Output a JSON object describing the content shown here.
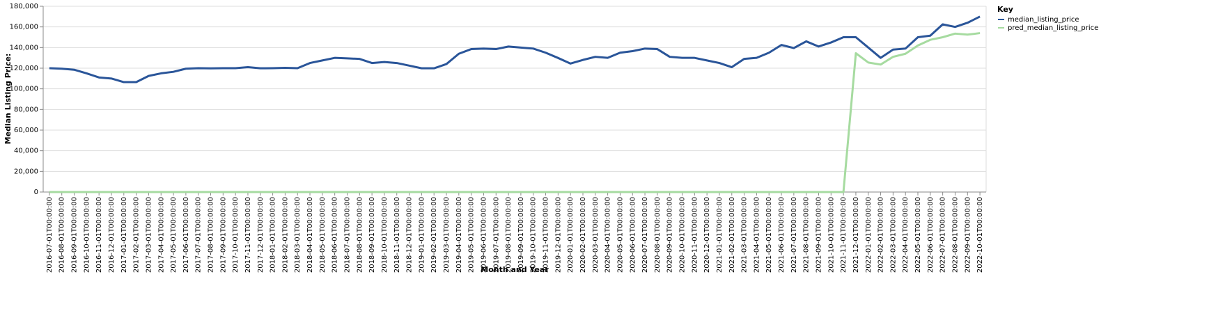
{
  "chart_data": {
    "type": "line",
    "y_label": "Median Listing Price:",
    "x_label": "Month and Year",
    "legend_title": "Key",
    "legend": "top-right",
    "grid": true,
    "categories": [
      "2016-07-01T00:00:00",
      "2016-08-01T00:00:00",
      "2016-09-01T00:00:00",
      "2016-10-01T00:00:00",
      "2016-11-01T00:00:00",
      "2016-12-01T00:00:00",
      "2017-01-01T00:00:00",
      "2017-02-01T00:00:00",
      "2017-03-01T00:00:00",
      "2017-04-01T00:00:00",
      "2017-05-01T00:00:00",
      "2017-06-01T00:00:00",
      "2017-07-01T00:00:00",
      "2017-08-01T00:00:00",
      "2017-09-01T00:00:00",
      "2017-10-01T00:00:00",
      "2017-11-01T00:00:00",
      "2017-12-01T00:00:00",
      "2018-01-01T00:00:00",
      "2018-02-01T00:00:00",
      "2018-03-01T00:00:00",
      "2018-04-01T00:00:00",
      "2018-05-01T00:00:00",
      "2018-06-01T00:00:00",
      "2018-07-01T00:00:00",
      "2018-08-01T00:00:00",
      "2018-09-01T00:00:00",
      "2018-10-01T00:00:00",
      "2018-11-01T00:00:00",
      "2018-12-01T00:00:00",
      "2019-01-01T00:00:00",
      "2019-02-01T00:00:00",
      "2019-03-01T00:00:00",
      "2019-04-01T00:00:00",
      "2019-05-01T00:00:00",
      "2019-06-01T00:00:00",
      "2019-07-01T00:00:00",
      "2019-08-01T00:00:00",
      "2019-09-01T00:00:00",
      "2019-10-01T00:00:00",
      "2019-11-01T00:00:00",
      "2019-12-01T00:00:00",
      "2020-01-01T00:00:00",
      "2020-02-01T00:00:00",
      "2020-03-01T00:00:00",
      "2020-04-01T00:00:00",
      "2020-05-01T00:00:00",
      "2020-06-01T00:00:00",
      "2020-07-01T00:00:00",
      "2020-08-01T00:00:00",
      "2020-09-01T00:00:00",
      "2020-10-01T00:00:00",
      "2020-11-01T00:00:00",
      "2020-12-01T00:00:00",
      "2021-01-01T00:00:00",
      "2021-02-01T00:00:00",
      "2021-03-01T00:00:00",
      "2021-04-01T00:00:00",
      "2021-05-01T00:00:00",
      "2021-06-01T00:00:00",
      "2021-07-01T00:00:00",
      "2021-08-01T00:00:00",
      "2021-09-01T00:00:00",
      "2021-10-01T00:00:00",
      "2021-11-01T00:00:00",
      "2021-12-01T00:00:00",
      "2022-01-01T00:00:00",
      "2022-02-01T00:00:00",
      "2022-03-01T00:00:00",
      "2022-04-01T00:00:00",
      "2022-05-01T00:00:00",
      "2022-06-01T00:00:00",
      "2022-07-01T00:00:00",
      "2022-08-01T00:00:00",
      "2022-09-01T00:00:00",
      "2022-10-01T00:00:00"
    ],
    "series": [
      {
        "name": "median_listing_price",
        "color": "#2a5599",
        "values": [
          120000,
          119500,
          118500,
          115000,
          111000,
          110000,
          106500,
          106500,
          112500,
          115000,
          116500,
          119500,
          120000,
          119800,
          120000,
          120000,
          121000,
          119900,
          120000,
          120300,
          120000,
          125000,
          127500,
          130000,
          129500,
          129000,
          125000,
          126000,
          125000,
          122500,
          119900,
          119900,
          124000,
          134000,
          138500,
          139000,
          138500,
          141000,
          140000,
          139000,
          135000,
          129900,
          124500,
          128000,
          131000,
          130000,
          135000,
          136500,
          139000,
          138500,
          131000,
          130000,
          130000,
          127500,
          125000,
          121000,
          129000,
          130000,
          135000,
          142500,
          139500,
          146000,
          141000,
          144900,
          150000,
          150000,
          140000,
          130000,
          138000,
          139000,
          150000,
          151500,
          162500,
          160000,
          164000,
          170000
        ]
      },
      {
        "name": "pred_median_listing_price",
        "color": "#a6dba0",
        "values": [
          0,
          0,
          0,
          0,
          0,
          0,
          0,
          0,
          0,
          0,
          0,
          0,
          0,
          0,
          0,
          0,
          0,
          0,
          0,
          0,
          0,
          0,
          0,
          0,
          0,
          0,
          0,
          0,
          0,
          0,
          0,
          0,
          0,
          0,
          0,
          0,
          0,
          0,
          0,
          0,
          0,
          0,
          0,
          0,
          0,
          0,
          0,
          0,
          0,
          0,
          0,
          0,
          0,
          0,
          0,
          0,
          0,
          0,
          0,
          0,
          0,
          0,
          0,
          0,
          0,
          134500,
          125500,
          123500,
          131000,
          134000,
          142000,
          147500,
          150000,
          153500,
          152500,
          154000
        ]
      }
    ],
    "ylim": [
      0,
      180000
    ],
    "yticks": [
      {
        "value": 0,
        "label": "0"
      },
      {
        "value": 20000,
        "label": "20,000"
      },
      {
        "value": 40000,
        "label": "40,000"
      },
      {
        "value": 60000,
        "label": "60,000"
      },
      {
        "value": 80000,
        "label": "80,000"
      },
      {
        "value": 100000,
        "label": "100,000"
      },
      {
        "value": 120000,
        "label": "120,000"
      },
      {
        "value": 140000,
        "label": "140,000"
      },
      {
        "value": 160000,
        "label": "160,000"
      },
      {
        "value": 180000,
        "label": "180,000"
      }
    ]
  }
}
